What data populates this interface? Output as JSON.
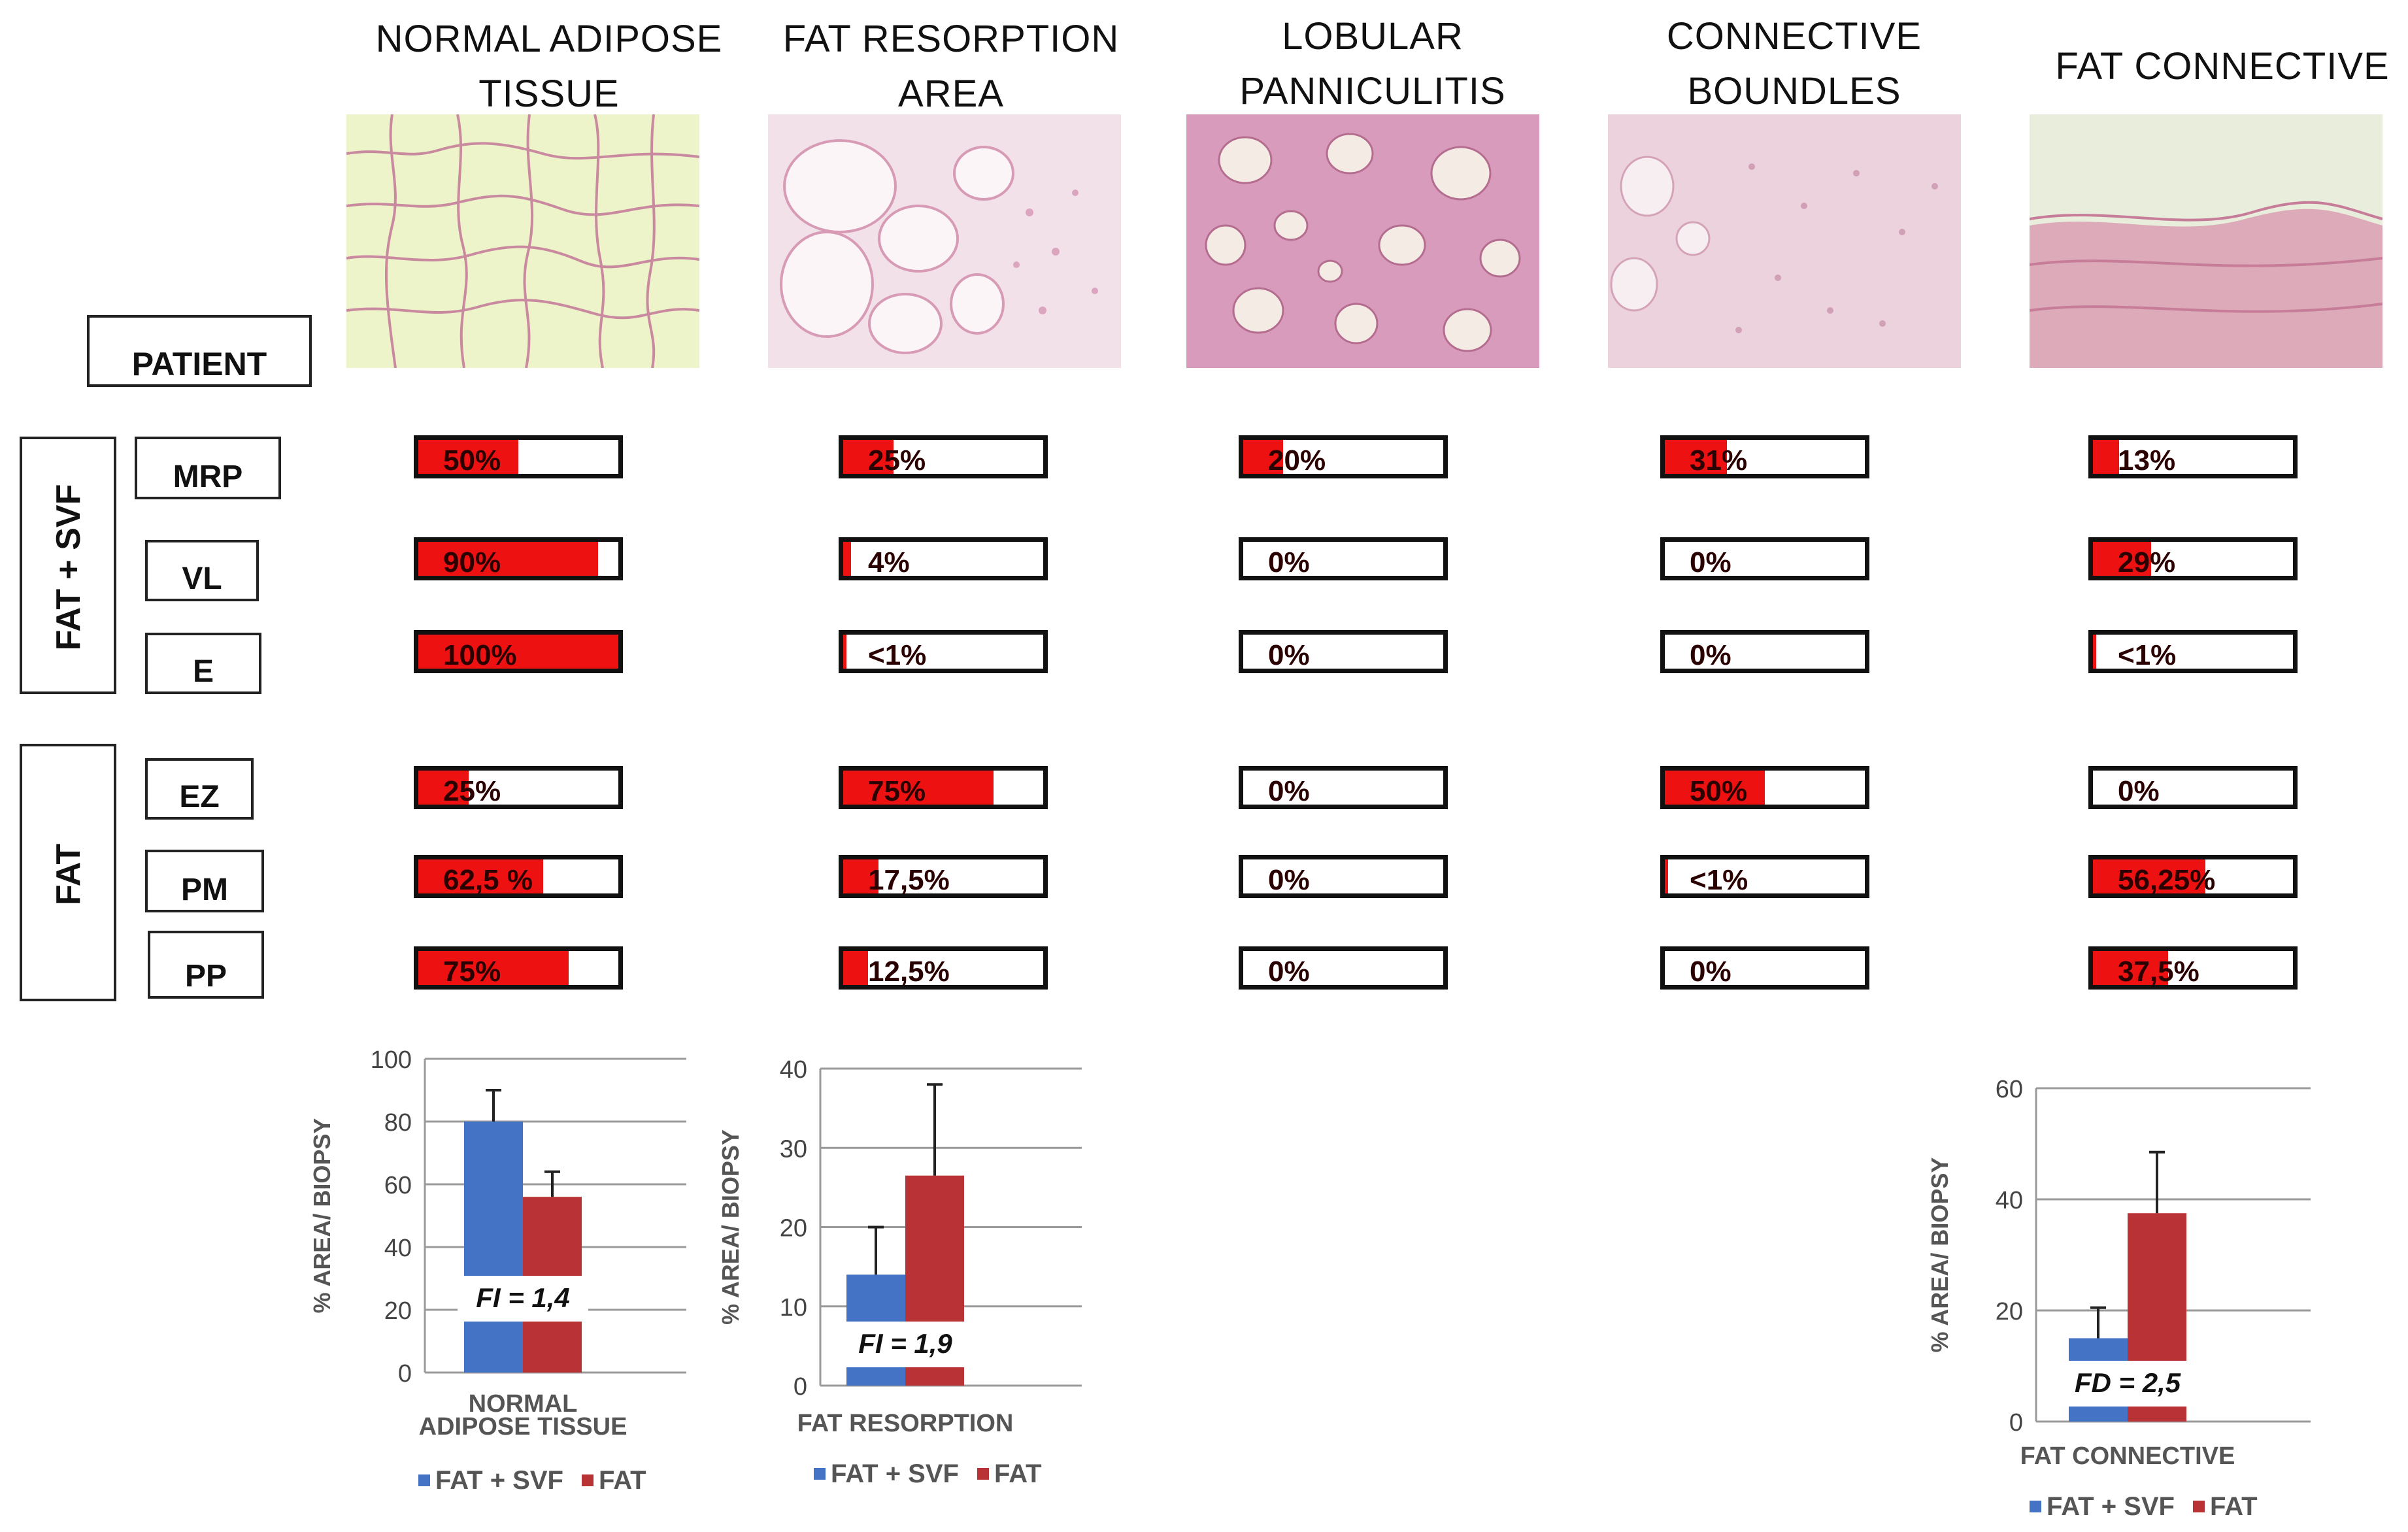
{
  "columns": [
    {
      "title": "NORMAL ADIPOSE\nTISSUE",
      "photo_theme": "normal"
    },
    {
      "title": "FAT RESORPTION\nAREA",
      "photo_theme": "resorption"
    },
    {
      "title": "LOBULAR\nPANNICULITIS",
      "photo_theme": "lobular"
    },
    {
      "title": "CONNECTIVE\nBOUNDLES",
      "photo_theme": "connective"
    },
    {
      "title": "FAT CONNECTIVE",
      "photo_theme": "fatconn"
    }
  ],
  "patient_label": "PATIENT",
  "groups": [
    {
      "label": "FAT + SVF",
      "rows": [
        "MRP",
        "VL",
        "E"
      ]
    },
    {
      "label": "FAT",
      "rows": [
        "EZ",
        "PM",
        "PP"
      ]
    }
  ],
  "bar_color": "#ee1111",
  "bars": [
    [
      {
        "label": "50%",
        "value": 50
      },
      {
        "label": "25%",
        "value": 25
      },
      {
        "label": "20%",
        "value": 20
      },
      {
        "label": "31%",
        "value": 31
      },
      {
        "label": "13%",
        "value": 13
      }
    ],
    [
      {
        "label": "90%",
        "value": 90
      },
      {
        "label": "4%",
        "value": 4
      },
      {
        "label": "0%",
        "value": 0
      },
      {
        "label": "0%",
        "value": 0
      },
      {
        "label": "29%",
        "value": 29
      }
    ],
    [
      {
        "label": "100%",
        "value": 100
      },
      {
        "label": "<1%",
        "value": 1
      },
      {
        "label": "0%",
        "value": 0
      },
      {
        "label": "0%",
        "value": 0
      },
      {
        "label": "<1%",
        "value": 1
      }
    ],
    [
      {
        "label": "25%",
        "value": 25
      },
      {
        "label": "75%",
        "value": 75
      },
      {
        "label": "0%",
        "value": 0
      },
      {
        "label": "50%",
        "value": 50
      },
      {
        "label": "0%",
        "value": 0
      }
    ],
    [
      {
        "label": "62,5 %",
        "value": 62.5
      },
      {
        "label": "17,5%",
        "value": 17.5
      },
      {
        "label": "0%",
        "value": 0
      },
      {
        "label": "<1%",
        "value": 1
      },
      {
        "label": "56,25%",
        "value": 56.25
      }
    ],
    [
      {
        "label": "75%",
        "value": 75
      },
      {
        "label": "12,5%",
        "value": 12.5
      },
      {
        "label": "0%",
        "value": 0
      },
      {
        "label": "0%",
        "value": 0
      },
      {
        "label": "37,5%",
        "value": 37.5
      }
    ]
  ],
  "chart_data": [
    {
      "type": "bar",
      "title": "",
      "categories": [
        "NORMAL ADIPOSE TISSUE"
      ],
      "category_lines": [
        "NORMAL",
        "ADIPOSE TISSUE"
      ],
      "xlabel": "",
      "ylabel": "% AREA/ BIOPSY",
      "ylim": [
        0,
        100
      ],
      "yticks": [
        0,
        20,
        40,
        60,
        80,
        100
      ],
      "series": [
        {
          "name": "FAT + SVF",
          "values": [
            80
          ],
          "error": [
            10
          ],
          "color": "#4472c4"
        },
        {
          "name": "FAT",
          "values": [
            56
          ],
          "error": [
            8
          ],
          "color": "#b83236"
        }
      ],
      "annotation": "FI = 1,4",
      "legend": [
        "FAT + SVF",
        "FAT"
      ],
      "legend_position": "bottom"
    },
    {
      "type": "bar",
      "title": "",
      "categories": [
        "FAT RESORPTION"
      ],
      "category_lines": [
        "FAT RESORPTION"
      ],
      "xlabel": "",
      "ylabel": "% AREA/ BIOPSY",
      "ylim": [
        0,
        40
      ],
      "yticks": [
        0,
        10,
        20,
        30,
        40
      ],
      "series": [
        {
          "name": "FAT + SVF",
          "values": [
            14
          ],
          "error": [
            6
          ],
          "color": "#4472c4"
        },
        {
          "name": "FAT",
          "values": [
            26.5
          ],
          "error": [
            11.5
          ],
          "color": "#b83236"
        }
      ],
      "annotation": "FI = 1,9",
      "legend": [
        "FAT + SVF",
        "FAT"
      ],
      "legend_position": "bottom"
    },
    {
      "type": "bar",
      "title": "",
      "categories": [
        "FAT CONNECTIVE"
      ],
      "category_lines": [
        "FAT CONNECTIVE"
      ],
      "xlabel": "",
      "ylabel": "% AREA/ BIOPSY",
      "ylim": [
        0,
        60
      ],
      "yticks": [
        0,
        20,
        40,
        60
      ],
      "series": [
        {
          "name": "FAT + SVF",
          "values": [
            15
          ],
          "error": [
            5.5
          ],
          "color": "#4472c4"
        },
        {
          "name": "FAT",
          "values": [
            37.5
          ],
          "error": [
            11
          ],
          "color": "#b83236"
        }
      ],
      "annotation": "FD = 2,5",
      "legend": [
        "FAT + SVF",
        "FAT"
      ],
      "legend_position": "bottom"
    }
  ]
}
